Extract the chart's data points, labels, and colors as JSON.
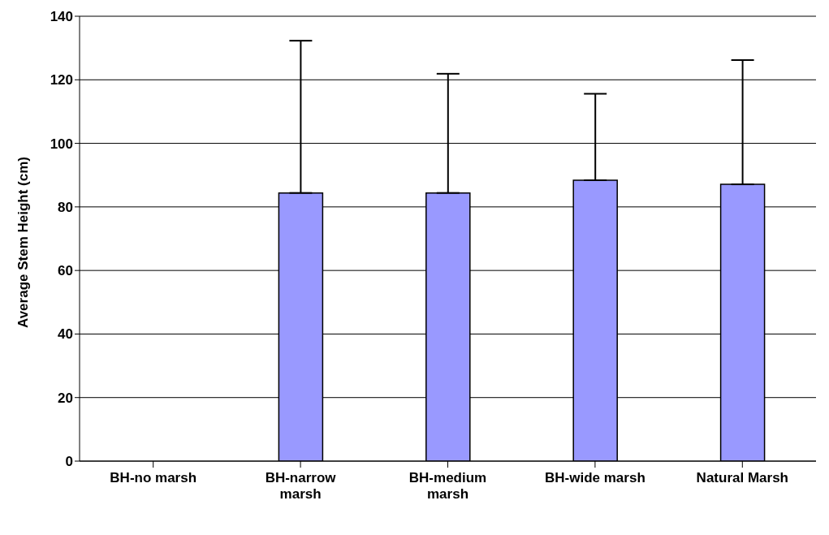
{
  "chart_data": {
    "type": "bar",
    "ylabel": "Average Stem Height (cm)",
    "categories": [
      "BH-no marsh",
      "BH-narrow marsh",
      "BH-medium marsh",
      "BH-wide marsh",
      "Natural Marsh"
    ],
    "values": [
      0,
      84.4,
      84.4,
      88.4,
      87.1
    ],
    "errors": [
      null,
      [
        84.4,
        132.3
      ],
      [
        84.4,
        121.9
      ],
      [
        88.4,
        115.6
      ],
      [
        87.1,
        126.2
      ]
    ],
    "color": "#9999ff",
    "ylim": [
      0,
      140
    ],
    "yticks": [
      0,
      20,
      40,
      60,
      80,
      100,
      120,
      140
    ],
    "grid": "y",
    "legend": false
  }
}
